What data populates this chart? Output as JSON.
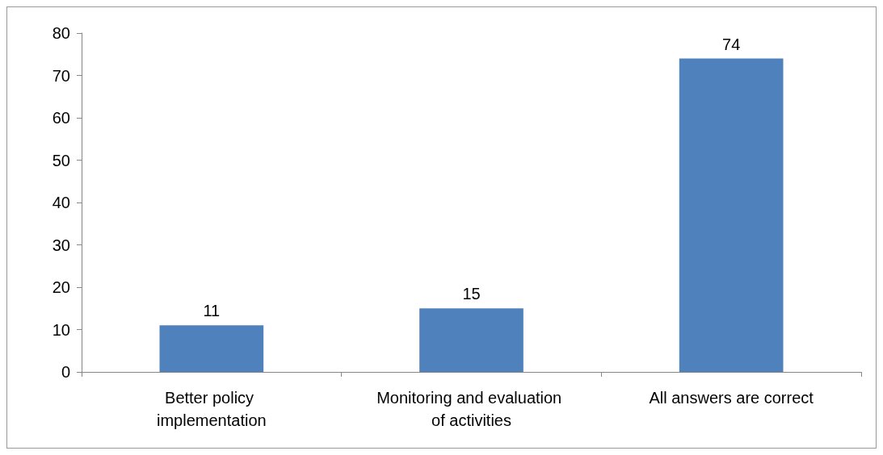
{
  "chart_data": {
    "type": "bar",
    "categories": [
      "Better policy implementation",
      "Monitoring and evaluation of activities",
      "All answers are correct"
    ],
    "values": [
      11,
      15,
      74
    ],
    "color": "#4f81bd",
    "ylim": [
      0,
      80
    ],
    "yticks": [
      0,
      10,
      20,
      30,
      40,
      50,
      60,
      70,
      80
    ],
    "grid": false,
    "data_labels": true
  }
}
